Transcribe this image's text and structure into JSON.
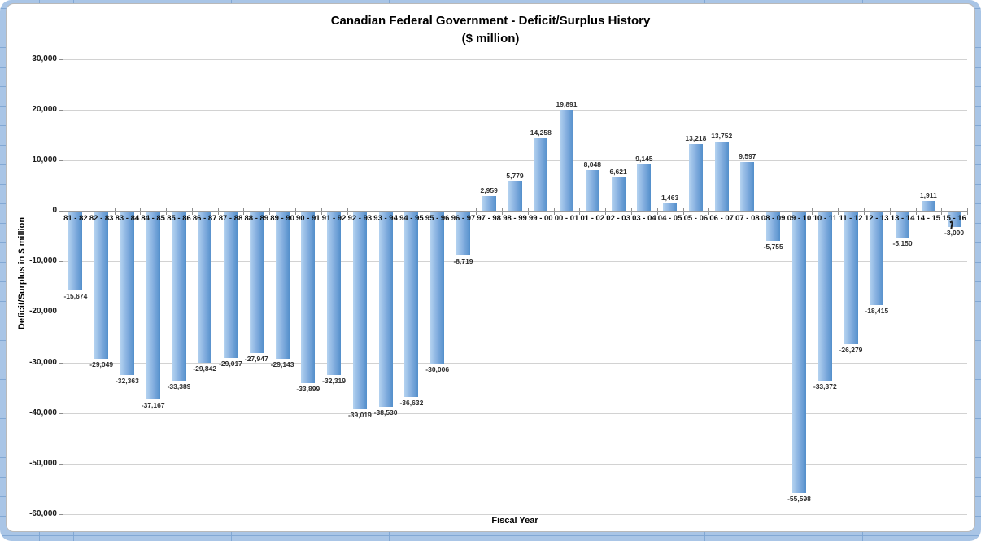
{
  "chart_data": {
    "type": "bar",
    "title": "Canadian Federal Government - Deficit/Surplus History",
    "subtitle": "($ million)",
    "xlabel": "Fiscal Year",
    "ylabel": "Deficit/Surplus in $ million",
    "ylim": [
      -60000,
      30000
    ],
    "ytick_step": 10000,
    "ytick_labels": [
      "30,000",
      "20,000",
      "10,000",
      "0",
      "-10,000",
      "-20,000",
      "-30,000",
      "-40,000",
      "-50,000",
      "-60,000"
    ],
    "grid": true,
    "legend": "none",
    "categories": [
      "81 - 82",
      "82 - 83",
      "83 - 84",
      "84 - 85",
      "85 - 86",
      "86 - 87",
      "87 - 88",
      "88 - 89",
      "89 - 90",
      "90 - 91",
      "91 - 92",
      "92 - 93",
      "93 - 94",
      "94 - 95",
      "95 - 96",
      "96 - 97",
      "97 - 98",
      "98 - 99",
      "99 - 00",
      "00 - 01",
      "01 - 02",
      "02 - 03",
      "03 - 04",
      "04 - 05",
      "05 - 06",
      "06 - 07",
      "07 - 08",
      "08 - 09",
      "09 - 10",
      "10 - 11",
      "11 - 12",
      "12 - 13",
      "13 - 14",
      "14 - 15",
      "15 - 16"
    ],
    "values": [
      -15674,
      -29049,
      -32363,
      -37167,
      -33389,
      -29842,
      -29017,
      -27947,
      -29143,
      -33899,
      -32319,
      -39019,
      -38530,
      -36632,
      -30006,
      -8719,
      2959,
      5779,
      14258,
      19891,
      8048,
      6621,
      9145,
      1463,
      13218,
      13752,
      9597,
      -5755,
      -55598,
      -33372,
      -26279,
      -18415,
      -5150,
      1911,
      -3000
    ],
    "value_labels": [
      "-15,674",
      "-29,049",
      "-32,363",
      "-37,167",
      "-33,389",
      "-29,842",
      "-29,017",
      "-27,947",
      "-29,143",
      "-33,899",
      "-32,319",
      "-39,019",
      "-38,530",
      "-36,632",
      "-30,006",
      "-8,719",
      "2,959",
      "5,779",
      "14,258",
      "19,891",
      "8,048",
      "6,621",
      "9,145",
      "1,463",
      "13,218",
      "13,752",
      "9,597",
      "-5,755",
      "-55,598",
      "-33,372",
      "-26,279",
      "-18,415",
      "-5,150",
      "1,911",
      "-3,000"
    ],
    "colors": {
      "bar_gradient_left": "#b4d2f0",
      "bar_gradient_right": "#538fcb",
      "gridline": "#d2d2d2",
      "axis": "#9a9a9a",
      "text": "#141414",
      "worksheet_background": "#a9c5e6"
    }
  }
}
